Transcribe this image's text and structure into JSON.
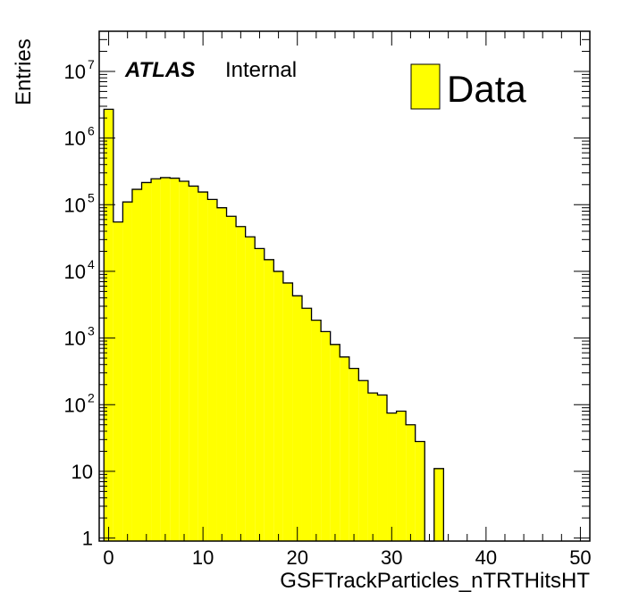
{
  "chart_data": {
    "type": "bar",
    "histogram": true,
    "xlabel": "GSFTrackParticles_nTRTHitsHT",
    "ylabel": "Entries",
    "xlim": [
      -1,
      51
    ],
    "ylim": [
      0.9,
      40000000
    ],
    "yscale": "log",
    "bin_width": 1,
    "x": [
      0,
      1,
      2,
      3,
      4,
      5,
      6,
      7,
      8,
      9,
      10,
      11,
      12,
      13,
      14,
      15,
      16,
      17,
      18,
      19,
      20,
      21,
      22,
      23,
      24,
      25,
      26,
      27,
      28,
      29,
      30,
      31,
      32,
      33,
      34,
      35
    ],
    "values": [
      2700000,
      55000,
      110000,
      170000,
      215000,
      245000,
      255000,
      250000,
      225000,
      190000,
      155000,
      120000,
      90000,
      67000,
      47000,
      33000,
      22000,
      15000,
      10000,
      6700,
      4300,
      2800,
      1850,
      1250,
      800,
      520,
      350,
      230,
      150,
      140,
      75,
      80,
      50,
      28,
      0,
      11
    ],
    "xticks": [
      "0",
      "10",
      "20",
      "30",
      "40",
      "50"
    ],
    "xtick_values": [
      0,
      10,
      20,
      30,
      40,
      50
    ],
    "yticks": [
      {
        "base": "1",
        "exp": "",
        "value": 1
      },
      {
        "base": "10",
        "exp": "",
        "value": 10
      },
      {
        "base": "10",
        "exp": "2",
        "value": 100
      },
      {
        "base": "10",
        "exp": "3",
        "value": 1000
      },
      {
        "base": "10",
        "exp": "4",
        "value": 10000
      },
      {
        "base": "10",
        "exp": "5",
        "value": 100000
      },
      {
        "base": "10",
        "exp": "6",
        "value": 1000000
      },
      {
        "base": "10",
        "exp": "7",
        "value": 10000000
      }
    ],
    "fill_color": "#ffff00",
    "line_color": "#000000",
    "grid": false,
    "legend": {
      "position": "top-right",
      "entries": [
        "Data"
      ]
    },
    "annotation": {
      "bold_italic": "ATLAS",
      "plain": "Internal"
    }
  }
}
